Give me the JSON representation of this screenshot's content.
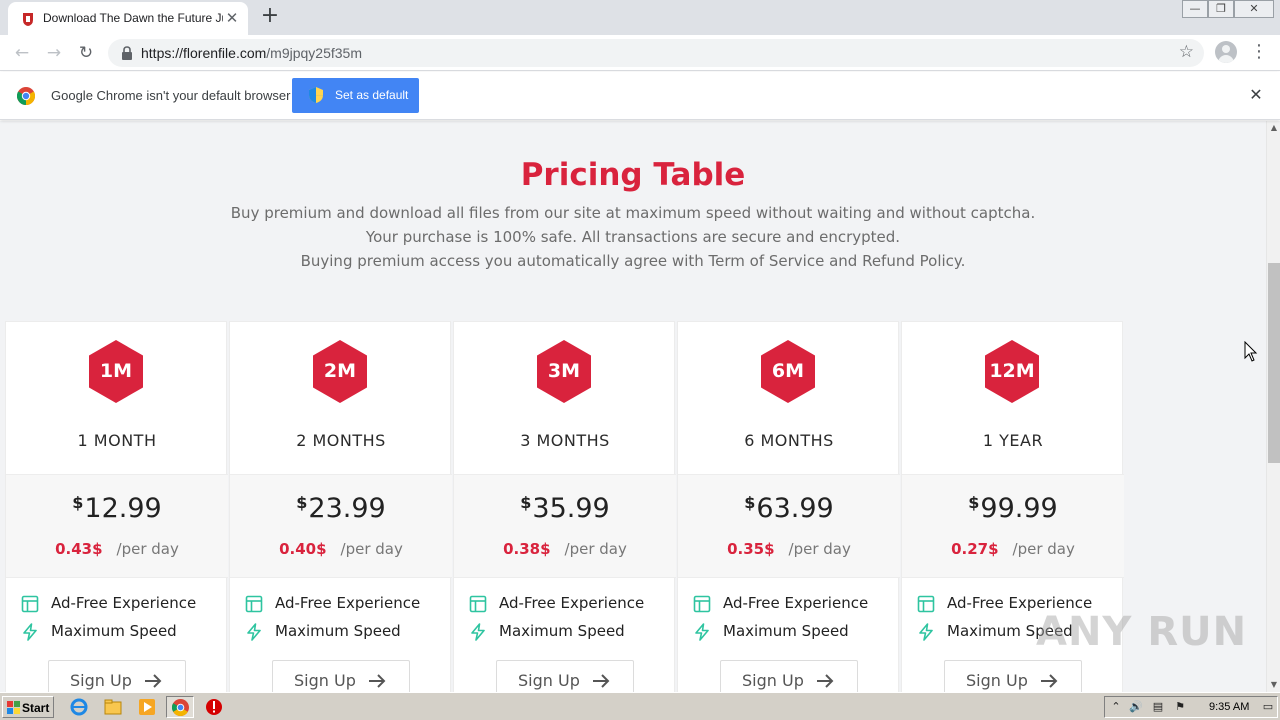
{
  "browser": {
    "tab_title": "Download The Dawn the Future Jun",
    "tab_close": "✕",
    "new_tab": "+",
    "url_host": "https://florenfile.com",
    "url_path": "/m9jpqy25f35m",
    "back": "←",
    "forward": "→",
    "reload": "↻",
    "bookmark_star": "☆",
    "menu": "⋮",
    "window_minimize": "—",
    "window_restore": "❐",
    "window_close": "✕"
  },
  "infobar": {
    "message": "Google Chrome isn't your default browser",
    "button_label": "Set as default",
    "close": "✕"
  },
  "page": {
    "title": "Pricing Table",
    "description": [
      "Buy premium and download all files from our site at maximum speed without waiting and without captcha.",
      "Your purchase is 100% safe. All transactions are secure and encrypted.",
      "Buying premium access you automatically agree with Term of Service and Refund Policy."
    ],
    "currency_symbol": "$",
    "per_day_label": "/per day",
    "signup_label": "Sign Up",
    "features": [
      "Ad-Free Experience",
      "Maximum Speed"
    ],
    "plans": [
      {
        "badge": "1M",
        "period": "1 MONTH",
        "price": "12.99",
        "per_day": "0.43$"
      },
      {
        "badge": "2M",
        "period": "2 MONTHS",
        "price": "23.99",
        "per_day": "0.40$"
      },
      {
        "badge": "3M",
        "period": "3 MONTHS",
        "price": "35.99",
        "per_day": "0.38$"
      },
      {
        "badge": "6M",
        "period": "6 MONTHS",
        "price": "63.99",
        "per_day": "0.35$"
      },
      {
        "badge": "12M",
        "period": "1 YEAR",
        "price": "99.99",
        "per_day": "0.27$"
      }
    ]
  },
  "watermark": "ANY RUN",
  "taskbar": {
    "start_label": "Start",
    "clock": "9:35 AM"
  },
  "colors": {
    "accent_red": "#d9233d",
    "feature_green": "#2ec4a0",
    "chrome_blue": "#4285f4"
  }
}
